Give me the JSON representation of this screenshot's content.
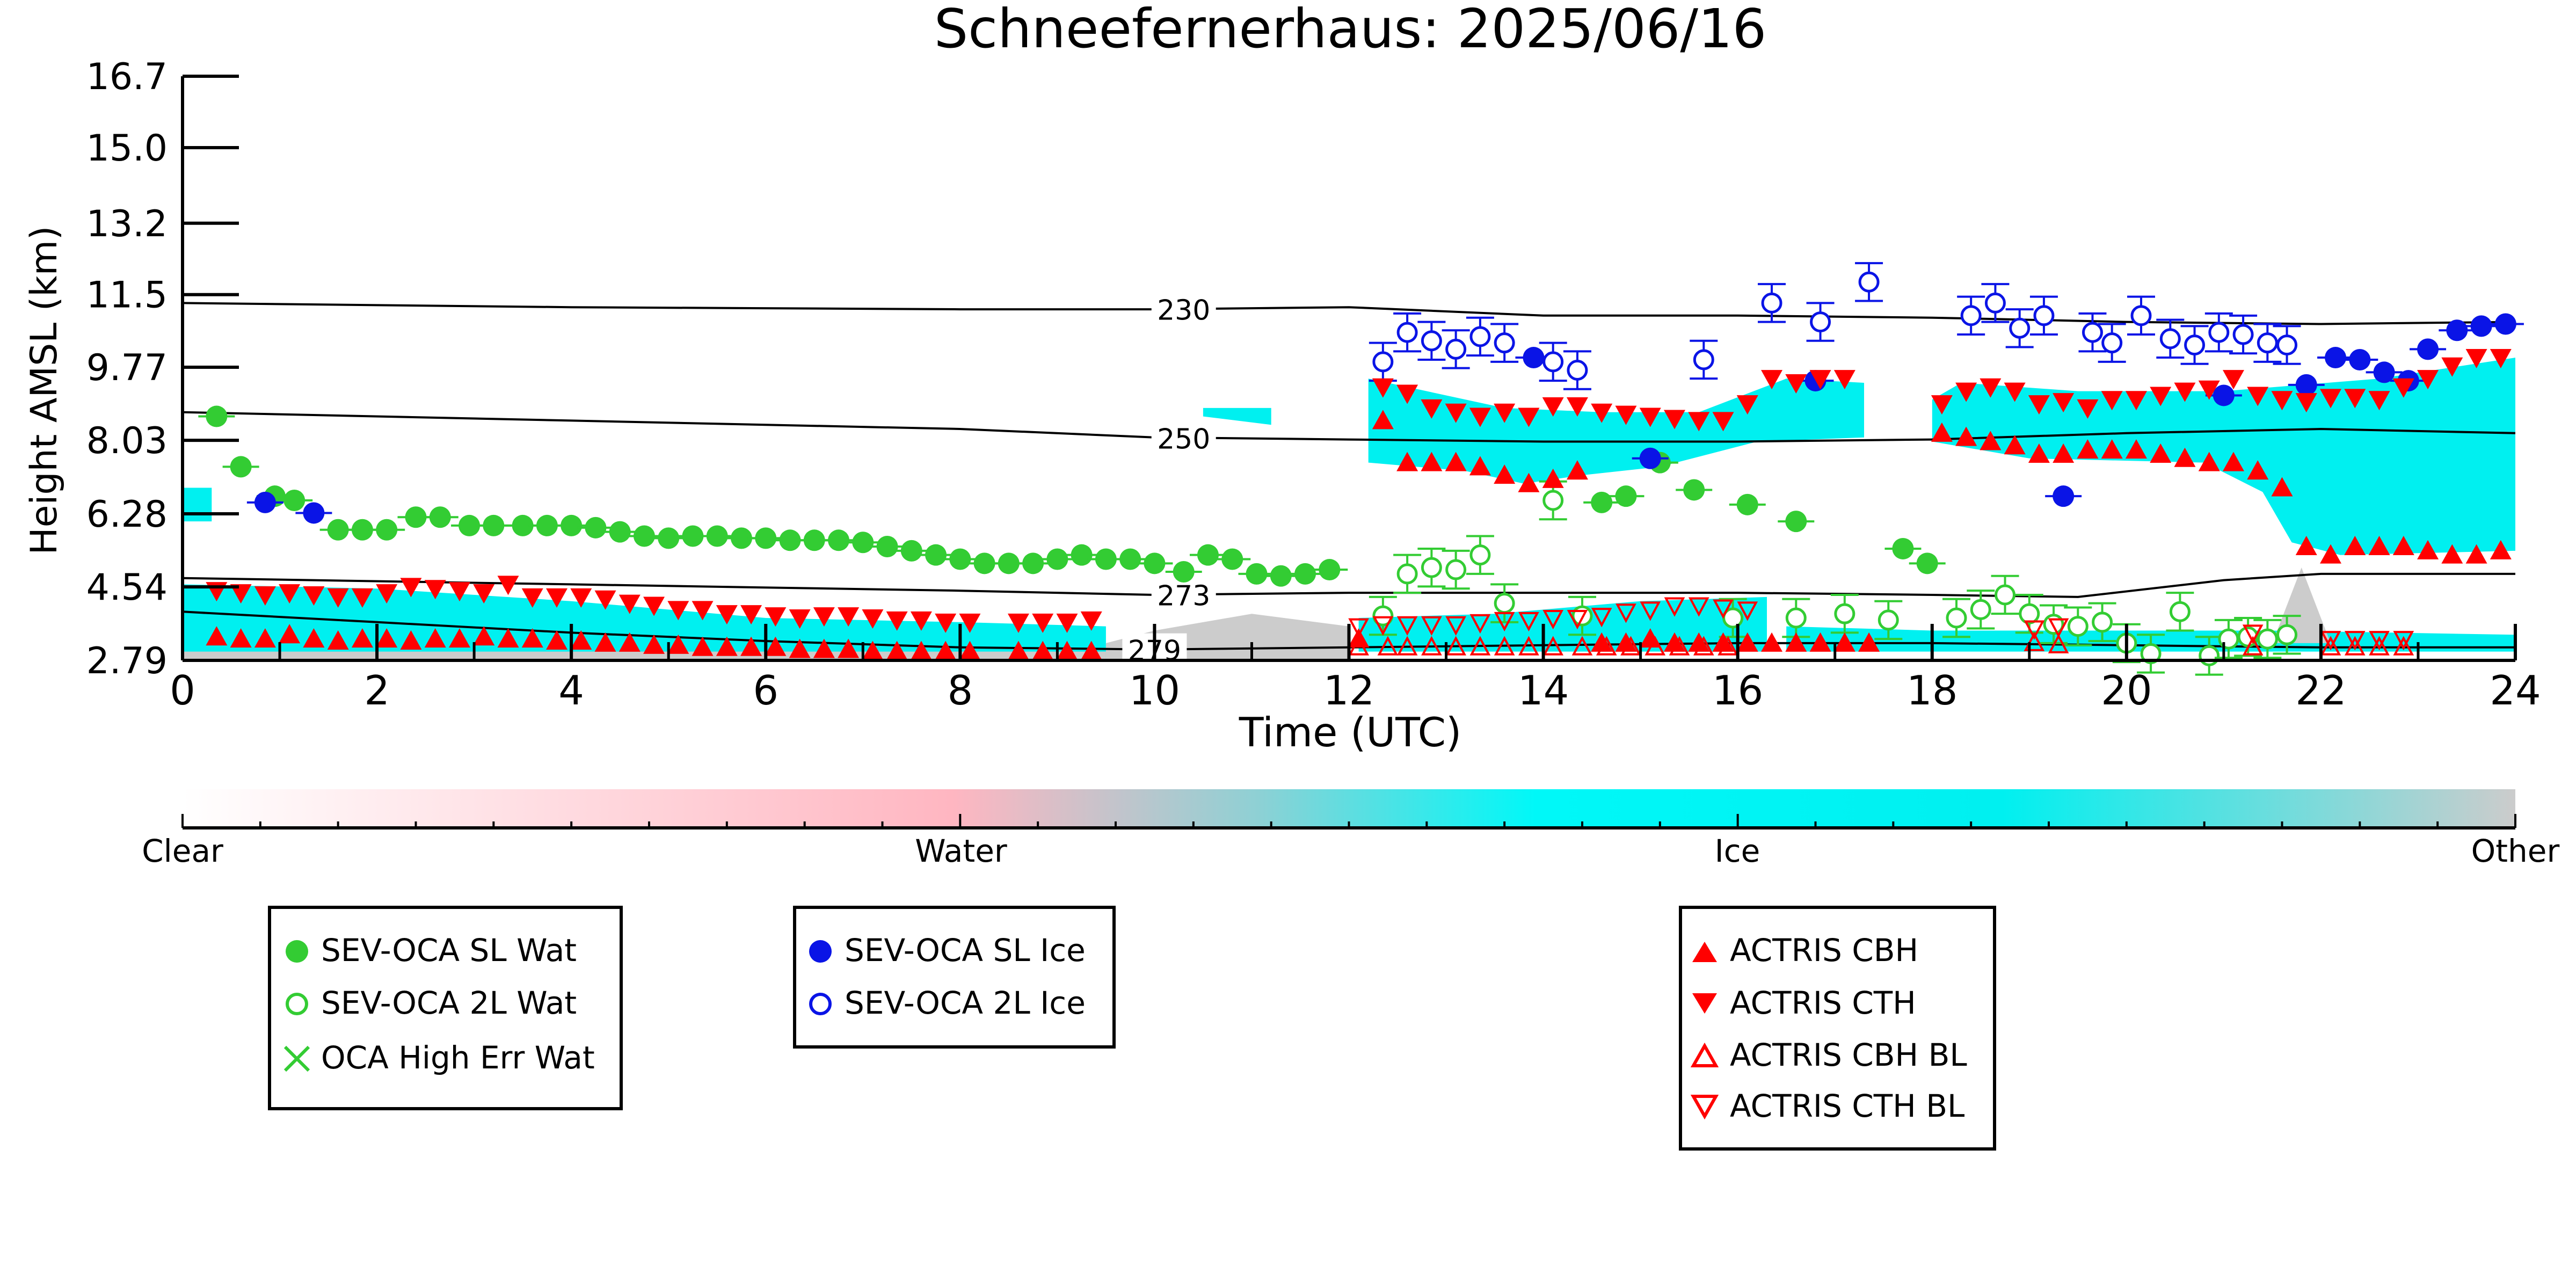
{
  "chart_data": {
    "type": "scatter",
    "title": "Schneefernerhaus: 2025/06/16",
    "xlabel": "Time (UTC)",
    "ylabel": "Height AMSL (km)",
    "xlim": [
      0,
      24
    ],
    "ylim": [
      2.79,
      16.7
    ],
    "xticks": [
      0,
      2,
      4,
      6,
      8,
      10,
      12,
      14,
      16,
      18,
      20,
      22,
      24
    ],
    "yticks": [
      2.79,
      4.54,
      6.28,
      8.03,
      9.77,
      11.5,
      13.2,
      15.0,
      16.7
    ],
    "ytick_labels": [
      "2.79",
      "4.54",
      "6.28",
      "8.03",
      "9.77",
      "11.5",
      "13.2",
      "15.0",
      "16.7"
    ],
    "grid": false,
    "colorbar": {
      "labels": [
        "Clear",
        "Water",
        "Ice",
        "Other"
      ],
      "colors": [
        "#ffffff",
        "#ffb6c1",
        "#00ffff",
        "#cccccc"
      ]
    },
    "contours": [
      {
        "label": "230",
        "x": [
          0,
          4,
          8,
          10,
          12,
          14,
          16,
          18,
          20,
          22,
          24
        ],
        "y": [
          11.3,
          11.2,
          11.15,
          11.15,
          11.2,
          11.0,
          11.0,
          10.95,
          10.85,
          10.8,
          10.85
        ]
      },
      {
        "label": "250",
        "x": [
          0,
          4,
          8,
          10,
          12,
          14,
          16,
          18,
          20,
          22,
          24
        ],
        "y": [
          8.7,
          8.5,
          8.3,
          8.1,
          8.05,
          8.0,
          8.0,
          8.05,
          8.2,
          8.3,
          8.2
        ]
      },
      {
        "label": "273",
        "x": [
          0,
          4,
          8,
          10,
          12,
          14,
          16,
          18,
          19.5,
          21,
          22,
          24
        ],
        "y": [
          4.75,
          4.6,
          4.45,
          4.35,
          4.4,
          4.4,
          4.4,
          4.35,
          4.3,
          4.7,
          4.85,
          4.85
        ]
      },
      {
        "label": "279",
        "x": [
          0,
          2,
          4,
          6,
          8,
          10,
          12,
          14,
          16,
          18,
          20,
          22,
          24
        ],
        "y": [
          3.95,
          3.7,
          3.45,
          3.25,
          3.1,
          3.05,
          3.1,
          3.15,
          3.2,
          3.2,
          3.15,
          3.1,
          3.1
        ]
      }
    ],
    "series": [
      {
        "name": "SEV-OCA SL Wat",
        "color": "#33cc33",
        "marker": "filled-circle",
        "x": [
          0.35,
          0.6,
          0.95,
          1.15,
          1.6,
          1.85,
          2.1,
          2.4,
          2.65,
          2.95,
          3.2,
          3.5,
          3.75,
          4.0,
          4.25,
          4.5,
          4.75,
          5.0,
          5.25,
          5.5,
          5.75,
          6.0,
          6.25,
          6.5,
          6.75,
          7.0,
          7.25,
          7.5,
          7.75,
          8.0,
          8.25,
          8.5,
          8.75,
          9.0,
          9.25,
          9.5,
          9.75,
          10.0,
          10.3,
          10.55,
          10.8,
          11.05,
          11.3,
          11.55,
          11.8,
          14.6,
          14.85,
          15.2,
          15.55,
          16.1,
          16.6,
          17.7,
          17.95
        ],
        "y": [
          8.6,
          7.4,
          6.7,
          6.6,
          5.9,
          5.9,
          5.9,
          6.2,
          6.2,
          6.0,
          6.0,
          6.0,
          6.0,
          6.0,
          5.95,
          5.85,
          5.75,
          5.7,
          5.75,
          5.75,
          5.7,
          5.7,
          5.65,
          5.65,
          5.65,
          5.6,
          5.5,
          5.4,
          5.3,
          5.2,
          5.1,
          5.1,
          5.1,
          5.2,
          5.3,
          5.2,
          5.2,
          5.1,
          4.9,
          5.3,
          5.2,
          4.85,
          4.8,
          4.85,
          4.95,
          6.55,
          6.7,
          7.5,
          6.85,
          6.5,
          6.1,
          5.45,
          5.1
        ]
      },
      {
        "name": "SEV-OCA 2L Wat",
        "color": "#33cc33",
        "marker": "open-circle",
        "errorbars": true,
        "x": [
          12.35,
          12.6,
          12.85,
          13.1,
          13.35,
          13.6,
          14.1,
          14.4,
          15.95,
          16.6,
          17.1,
          17.55,
          18.25,
          18.5,
          18.75,
          19.0,
          19.25,
          19.5,
          19.75,
          20.0,
          20.25,
          20.55,
          20.85,
          21.05,
          21.25,
          21.45,
          21.65
        ],
        "y": [
          3.85,
          4.85,
          5.0,
          4.95,
          5.3,
          4.15,
          6.6,
          3.85,
          3.8,
          3.8,
          3.9,
          3.75,
          3.8,
          4.0,
          4.35,
          3.9,
          3.65,
          3.6,
          3.7,
          3.2,
          2.95,
          3.95,
          2.9,
          3.3,
          3.35,
          3.3,
          3.4
        ]
      },
      {
        "name": "OCA High Err Wat",
        "color": "#33cc33",
        "marker": "x",
        "x": [],
        "y": []
      },
      {
        "name": "SEV-OCA SL Ice",
        "color": "#0a14e6",
        "marker": "filled-circle",
        "x": [
          0.85,
          1.35,
          13.9,
          15.1,
          16.8,
          19.35,
          21.0,
          21.85,
          22.15,
          22.4,
          22.65,
          22.9,
          23.1,
          23.4,
          23.65,
          23.9
        ],
        "y": [
          6.55,
          6.3,
          10.0,
          7.6,
          9.45,
          6.7,
          9.1,
          9.35,
          10.0,
          9.95,
          9.65,
          9.45,
          10.2,
          10.65,
          10.75,
          10.8
        ]
      },
      {
        "name": "SEV-OCA 2L Ice",
        "color": "#0a14e6",
        "marker": "open-circle",
        "errorbars": true,
        "x": [
          12.35,
          12.6,
          12.85,
          13.1,
          13.35,
          13.6,
          14.1,
          14.35,
          15.65,
          16.35,
          16.85,
          17.35,
          18.4,
          18.65,
          18.9,
          19.15,
          19.65,
          19.85,
          20.15,
          20.45,
          20.7,
          20.95,
          21.2,
          21.45,
          21.65
        ],
        "y": [
          9.9,
          10.6,
          10.4,
          10.2,
          10.5,
          10.35,
          9.9,
          9.7,
          9.95,
          11.3,
          10.85,
          11.8,
          11.0,
          11.3,
          10.7,
          11.0,
          10.6,
          10.35,
          11.0,
          10.45,
          10.3,
          10.6,
          10.55,
          10.35,
          10.3
        ]
      },
      {
        "name": "ACTRIS CBH",
        "color": "#ff0000",
        "marker": "filled-triangle-up",
        "x": [
          0.35,
          0.6,
          0.85,
          1.1,
          1.35,
          1.6,
          1.85,
          2.1,
          2.35,
          2.6,
          2.85,
          3.1,
          3.35,
          3.6,
          3.85,
          4.1,
          4.35,
          4.6,
          4.85,
          5.1,
          5.35,
          5.6,
          5.85,
          6.1,
          6.35,
          6.6,
          6.85,
          7.1,
          7.35,
          7.6,
          7.85,
          8.1,
          8.6,
          8.85,
          9.1,
          9.35,
          12.1,
          12.35,
          12.6,
          12.85,
          13.1,
          13.35,
          13.6,
          13.85,
          14.1,
          14.35,
          14.6,
          14.85,
          15.1,
          15.35,
          15.6,
          15.85,
          16.1,
          16.35,
          16.6,
          16.85,
          17.1,
          17.35,
          18.1,
          18.35,
          18.6,
          18.85,
          19.1,
          19.35,
          19.6,
          19.85,
          20.1,
          20.35,
          20.6,
          20.85,
          21.1,
          21.35,
          21.6,
          21.85,
          22.1,
          22.35,
          22.6,
          22.85,
          23.1,
          23.35,
          23.6,
          23.85
        ],
        "y": [
          3.35,
          3.3,
          3.3,
          3.4,
          3.3,
          3.25,
          3.3,
          3.3,
          3.25,
          3.3,
          3.3,
          3.35,
          3.3,
          3.3,
          3.25,
          3.25,
          3.2,
          3.2,
          3.15,
          3.15,
          3.1,
          3.1,
          3.1,
          3.1,
          3.05,
          3.05,
          3.05,
          3.0,
          3.0,
          3.0,
          3.0,
          3.0,
          3.0,
          3.0,
          3.0,
          3.0,
          3.3,
          8.5,
          7.5,
          7.5,
          7.5,
          7.4,
          7.2,
          7.0,
          7.1,
          7.3,
          3.2,
          3.2,
          3.3,
          3.2,
          3.2,
          3.2,
          3.2,
          3.2,
          3.2,
          3.2,
          3.2,
          3.2,
          8.2,
          8.1,
          8.0,
          7.9,
          7.7,
          7.7,
          7.8,
          7.8,
          7.8,
          7.7,
          7.6,
          7.5,
          7.5,
          7.3,
          6.9,
          5.5,
          5.3,
          5.5,
          5.5,
          5.5,
          5.4,
          5.3,
          5.3,
          5.4
        ]
      },
      {
        "name": "ACTRIS CTH",
        "color": "#ff0000",
        "marker": "filled-triangle-down",
        "x": [
          0.35,
          0.6,
          0.85,
          1.1,
          1.35,
          1.6,
          1.85,
          2.1,
          2.35,
          2.6,
          2.85,
          3.1,
          3.35,
          3.6,
          3.85,
          4.1,
          4.35,
          4.6,
          4.85,
          5.1,
          5.35,
          5.6,
          5.85,
          6.1,
          6.35,
          6.6,
          6.85,
          7.1,
          7.35,
          7.6,
          7.85,
          8.1,
          8.6,
          8.85,
          9.1,
          9.35,
          12.35,
          12.6,
          12.85,
          13.1,
          13.35,
          13.6,
          13.85,
          14.1,
          14.35,
          14.6,
          14.85,
          15.1,
          15.35,
          15.6,
          15.85,
          16.1,
          16.35,
          16.6,
          16.85,
          17.1,
          18.1,
          18.35,
          18.6,
          18.85,
          19.1,
          19.35,
          19.6,
          19.85,
          20.1,
          20.35,
          20.6,
          20.85,
          21.1,
          21.35,
          21.6,
          21.85,
          22.1,
          22.35,
          22.6,
          22.85,
          23.1,
          23.35,
          23.6,
          23.85
        ],
        "y": [
          4.45,
          4.4,
          4.35,
          4.4,
          4.35,
          4.3,
          4.3,
          4.4,
          4.55,
          4.5,
          4.45,
          4.4,
          4.6,
          4.3,
          4.3,
          4.3,
          4.25,
          4.15,
          4.1,
          4.0,
          4.0,
          3.9,
          3.9,
          3.85,
          3.8,
          3.85,
          3.85,
          3.8,
          3.75,
          3.75,
          3.7,
          3.7,
          3.7,
          3.7,
          3.7,
          3.75,
          9.3,
          9.15,
          8.8,
          8.7,
          8.6,
          8.7,
          8.6,
          8.85,
          8.85,
          8.7,
          8.65,
          8.6,
          8.55,
          8.5,
          8.5,
          8.9,
          9.5,
          9.4,
          9.5,
          9.5,
          8.9,
          9.2,
          9.3,
          9.2,
          8.9,
          8.95,
          8.8,
          9.0,
          9.0,
          9.1,
          9.2,
          9.25,
          9.5,
          9.1,
          9.0,
          8.95,
          9.05,
          9.05,
          9.0,
          9.3,
          9.5,
          9.8,
          10.0,
          10.0
        ]
      },
      {
        "name": "ACTRIS CBH BL",
        "color": "#ff0000",
        "marker": "open-triangle-up",
        "x": [
          12.1,
          12.4,
          12.6,
          12.85,
          13.1,
          13.35,
          13.6,
          13.85,
          14.1,
          14.4,
          14.65,
          14.9,
          15.15,
          15.4,
          15.65,
          15.9,
          19.05,
          19.3,
          21.3,
          22.1,
          22.35,
          22.6,
          22.85
        ],
        "y": [
          3.1,
          3.1,
          3.1,
          3.1,
          3.1,
          3.1,
          3.1,
          3.1,
          3.1,
          3.1,
          3.1,
          3.1,
          3.1,
          3.1,
          3.1,
          3.1,
          3.2,
          3.15,
          3.1,
          3.1,
          3.1,
          3.1,
          3.1
        ]
      },
      {
        "name": "ACTRIS CTH BL",
        "color": "#ff0000",
        "marker": "open-triangle-down",
        "x": [
          12.1,
          12.35,
          12.6,
          12.85,
          13.1,
          13.35,
          13.6,
          13.85,
          14.1,
          14.35,
          14.6,
          14.85,
          15.1,
          15.35,
          15.6,
          15.85,
          16.1,
          19.05,
          19.3,
          21.3,
          22.1,
          22.35,
          22.6,
          22.85
        ],
        "y": [
          3.6,
          3.65,
          3.65,
          3.65,
          3.65,
          3.7,
          3.75,
          3.75,
          3.8,
          3.8,
          3.85,
          3.95,
          4.0,
          4.1,
          4.1,
          4.05,
          4.0,
          3.55,
          3.6,
          3.45,
          3.3,
          3.3,
          3.3,
          3.3
        ]
      }
    ],
    "legends": [
      {
        "entries": [
          "SEV-OCA SL Wat",
          "SEV-OCA 2L Wat",
          "OCA High Err Wat"
        ]
      },
      {
        "entries": [
          "SEV-OCA SL Ice",
          "SEV-OCA 2L Ice"
        ]
      },
      {
        "entries": [
          "ACTRIS CBH",
          "ACTRIS CTH",
          "ACTRIS CBH BL",
          "ACTRIS CTH BL"
        ]
      }
    ]
  }
}
